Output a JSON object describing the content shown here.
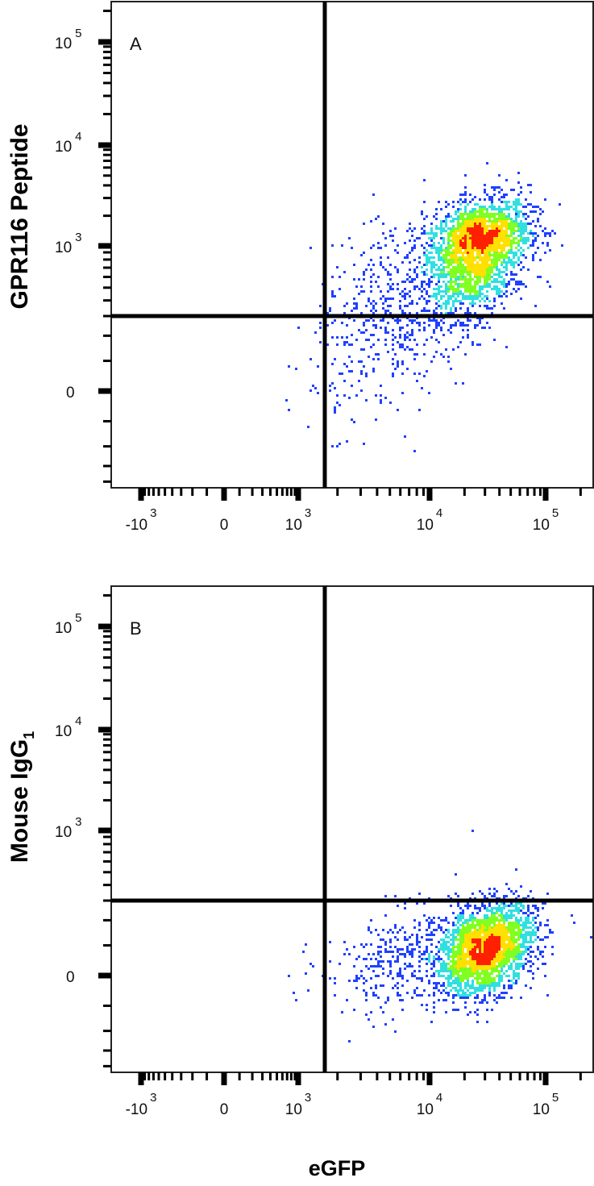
{
  "chart_data": [
    {
      "type": "scatter",
      "subtype": "flow-cytometry density plot (pseudocolor)",
      "panel_label": "A",
      "xlabel": "",
      "ylabel": "GPR116 Peptide",
      "x_scale": "biexponential",
      "y_scale": "biexponential",
      "x_ticks": [
        {
          "value": -1000,
          "base": "-10",
          "exp": "3"
        },
        {
          "value": 0,
          "base": "0",
          "exp": ""
        },
        {
          "value": 1000,
          "base": "10",
          "exp": "3"
        },
        {
          "value": 10000,
          "base": "10",
          "exp": "4"
        },
        {
          "value": 100000,
          "base": "10",
          "exp": "5"
        }
      ],
      "y_ticks": [
        {
          "value": 0,
          "base": "0",
          "exp": ""
        },
        {
          "value": 1000,
          "base": "10",
          "exp": "3"
        },
        {
          "value": 10000,
          "base": "10",
          "exp": "4"
        },
        {
          "value": 100000,
          "base": "10",
          "exp": "5"
        }
      ],
      "quadrant_gate": {
        "x": 1600,
        "y": 300
      },
      "populations": [
        {
          "center": [
            25000,
            1000
          ],
          "count": 2600,
          "spread_decades": [
            0.45,
            0.5
          ]
        },
        {
          "center": [
            5000,
            300
          ],
          "count": 500,
          "spread_decades": [
            0.6,
            0.7
          ]
        }
      ],
      "density_colors": [
        "#2040ff",
        "#30e0e0",
        "#80ff20",
        "#ffe000",
        "#ff2000"
      ]
    },
    {
      "type": "scatter",
      "subtype": "flow-cytometry density plot (pseudocolor)",
      "panel_label": "B",
      "xlabel": "eGFP",
      "ylabel": "Mouse IgG",
      "ylabel_sub": "1",
      "x_scale": "biexponential",
      "y_scale": "biexponential",
      "x_ticks": [
        {
          "value": -1000,
          "base": "-10",
          "exp": "3"
        },
        {
          "value": 0,
          "base": "0",
          "exp": ""
        },
        {
          "value": 1000,
          "base": "10",
          "exp": "3"
        },
        {
          "value": 10000,
          "base": "10",
          "exp": "4"
        },
        {
          "value": 100000,
          "base": "10",
          "exp": "5"
        }
      ],
      "y_ticks": [
        {
          "value": 0,
          "base": "0",
          "exp": ""
        },
        {
          "value": 1000,
          "base": "10",
          "exp": "3"
        },
        {
          "value": 10000,
          "base": "10",
          "exp": "4"
        },
        {
          "value": 100000,
          "base": "10",
          "exp": "5"
        }
      ],
      "quadrant_gate": {
        "x": 1600,
        "y": 300
      },
      "populations": [
        {
          "center": [
            30000,
            90
          ],
          "count": 2600,
          "spread_decades": [
            0.42,
            0.33
          ]
        },
        {
          "center": [
            6000,
            60
          ],
          "count": 350,
          "spread_decades": [
            0.6,
            0.4
          ]
        }
      ],
      "density_colors": [
        "#2040ff",
        "#30e0e0",
        "#80ff20",
        "#ffe000",
        "#ff2000"
      ]
    }
  ]
}
